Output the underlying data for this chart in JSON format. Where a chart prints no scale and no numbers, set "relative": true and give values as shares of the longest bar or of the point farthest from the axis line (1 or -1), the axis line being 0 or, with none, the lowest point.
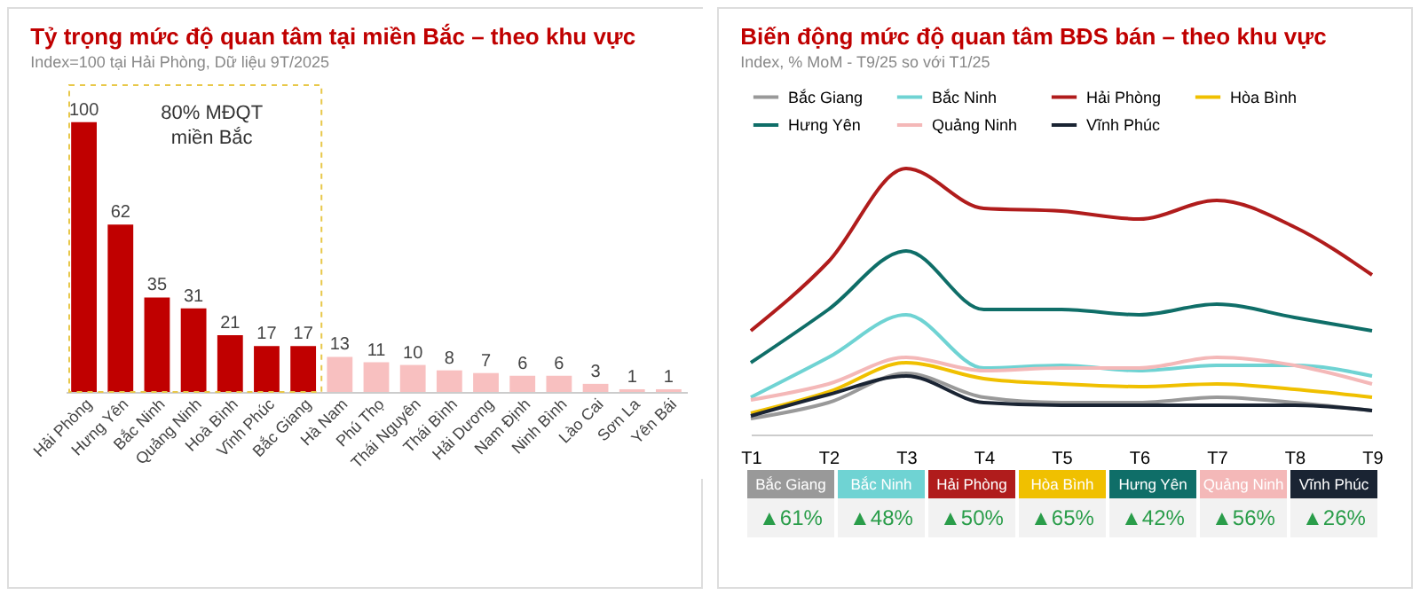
{
  "chart_data": [
    {
      "type": "bar",
      "title": "Tỷ trọng mức độ quan tâm tại miền Bắc – theo khu vực",
      "subtitle": "Index=100 tại Hải Phòng, Dữ liệu 9T/2025",
      "categories": [
        "Hải Phòng",
        "Hưng Yên",
        "Bắc Ninh",
        "Quảng Ninh",
        "Hoà Bình",
        "Vĩnh Phúc",
        "Bắc Giang",
        "Hà Nam",
        "Phú Thọ",
        "Thái Nguyên",
        "Thái Bình",
        "Hải Dương",
        "Nam Định",
        "Ninh Bình",
        "Lào Cai",
        "Sơn La",
        "Yên Bái"
      ],
      "values": [
        100,
        62,
        35,
        31,
        21,
        17,
        17,
        13,
        11,
        10,
        8,
        7,
        6,
        6,
        3,
        1,
        1
      ],
      "colors": [
        "#c00000",
        "#c00000",
        "#c00000",
        "#c00000",
        "#c00000",
        "#c00000",
        "#c00000",
        "#f8c0c0",
        "#f8c0c0",
        "#f8c0c0",
        "#f8c0c0",
        "#f8c0c0",
        "#f8c0c0",
        "#f8c0c0",
        "#f8c0c0",
        "#f8c0c0",
        "#f8c0c0"
      ],
      "data_labels": true,
      "annotations": [
        "80% MĐQT miền Bắc"
      ]
    },
    {
      "type": "line",
      "title": "Biến động mức độ quan tâm BĐS bán – theo khu vực",
      "subtitle": "Index, % MoM -  T9/25 so với T1/25",
      "categories": [
        "T1",
        "T2",
        "T3",
        "T4",
        "T5",
        "T6",
        "T7",
        "T8",
        "T9"
      ],
      "relative": true,
      "grid": false,
      "legend": "top",
      "marker": "none",
      "series": [
        {
          "name": "Bắc Giang",
          "color": "#999999",
          "values": [
            0.06,
            0.12,
            0.23,
            0.14,
            0.12,
            0.12,
            0.14,
            0.12,
            0.09
          ]
        },
        {
          "name": "Bắc Ninh",
          "color": "#6fd3d3",
          "values": [
            0.14,
            0.29,
            0.45,
            0.25,
            0.26,
            0.24,
            0.26,
            0.26,
            0.22
          ]
        },
        {
          "name": "Hải Phòng",
          "color": "#b01c1c",
          "values": [
            0.39,
            0.65,
            1,
            0.85,
            0.84,
            0.81,
            0.88,
            0.78,
            0.6
          ]
        },
        {
          "name": "Hòa Bình",
          "color": "#f0c000",
          "values": [
            0.08,
            0.16,
            0.27,
            0.21,
            0.19,
            0.18,
            0.19,
            0.17,
            0.14
          ]
        },
        {
          "name": "Hưng Yên",
          "color": "#0f6e68",
          "values": [
            0.27,
            0.47,
            0.69,
            0.47,
            0.47,
            0.45,
            0.49,
            0.44,
            0.39
          ]
        },
        {
          "name": "Quảng Ninh",
          "color": "#f4b8b8",
          "values": [
            0.13,
            0.19,
            0.29,
            0.24,
            0.25,
            0.25,
            0.29,
            0.26,
            0.19
          ]
        },
        {
          "name": "Vĩnh Phúc",
          "color": "#1a2433",
          "values": [
            0.07,
            0.15,
            0.22,
            0.12,
            0.11,
            0.11,
            0.11,
            0.11,
            0.09
          ]
        }
      ],
      "annotations": [
        "▲61%",
        "▲48%",
        "▲50%",
        "▲65%",
        "▲42%",
        "▲56%",
        "▲26%"
      ]
    }
  ]
}
